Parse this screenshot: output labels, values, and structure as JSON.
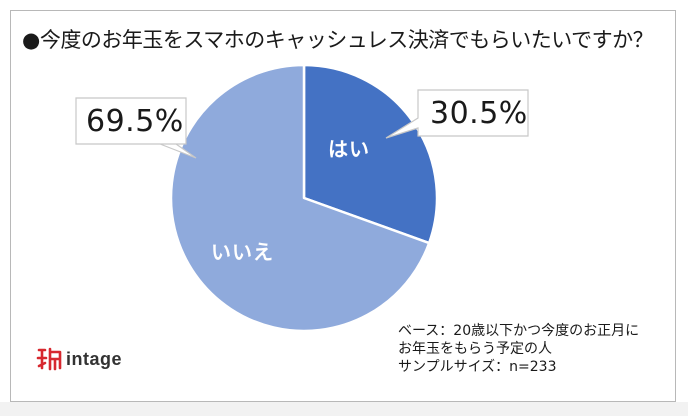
{
  "chart_data": {
    "type": "pie",
    "title": "●今度のお年玉をスマホのキャッシュレス決済でもらいたいですか？",
    "slices": [
      {
        "label": "はい",
        "value": 30.5,
        "value_label": "30.5%",
        "color": "#4472c4"
      },
      {
        "label": "いいえ",
        "value": 69.5,
        "value_label": "69.5%",
        "color": "#8faadc"
      }
    ],
    "start_angle": "12 o'clock",
    "direction": "clockwise"
  },
  "note": {
    "lines": [
      "ベース：20歳以下かつ今度のお正月に",
      "お年玉をもらう予定の人",
      "サンプルサイズ：n=233"
    ]
  },
  "brand": {
    "name": "intage",
    "logo_color": "#d7282f"
  }
}
